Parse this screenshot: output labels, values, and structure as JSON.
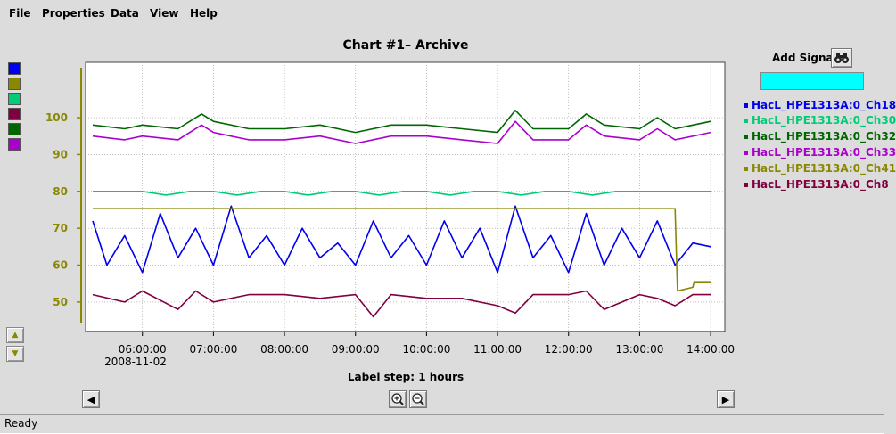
{
  "menu": [
    "File",
    "Properties",
    "Data",
    "View",
    "Help"
  ],
  "chart": {
    "title": "Chart #1– Archive"
  },
  "swatches": [
    "#0000ee",
    "#8a8700",
    "#00cc77",
    "#800040",
    "#006600",
    "#aa00cc"
  ],
  "add_signal": {
    "label": "Add Signal",
    "value": ""
  },
  "legend": [
    {
      "label": "HacL_HPE1313A:0_Ch18",
      "color": "#0000ee"
    },
    {
      "label": "HacL_HPE1313A:0_Ch30",
      "color": "#00cc77"
    },
    {
      "label": "HacL_HPE1313A:0_Ch32",
      "color": "#006600"
    },
    {
      "label": "HacL_HPE1313A:0_Ch33",
      "color": "#aa00cc"
    },
    {
      "label": "HacL_HPE1313A:0_Ch41",
      "color": "#8a8700"
    },
    {
      "label": "HacL_HPE1313A:0_Ch8",
      "color": "#800040"
    }
  ],
  "axis": {
    "label_step": "Label step: 1 hours",
    "date_label": "2008-11-02"
  },
  "status": "Ready",
  "chart_data": {
    "type": "line",
    "title": "Chart #1– Archive",
    "xlabel": "Label step: 1 hours",
    "ylabel": "",
    "x_start": "2008-11-02 05:18",
    "x_end": "2008-11-02 14:00",
    "xlim": [
      "2008-11-02 05:12",
      "2008-11-02 14:12"
    ],
    "ylim": [
      42,
      115
    ],
    "y_ticks": [
      50,
      60,
      70,
      80,
      90,
      100
    ],
    "x_ticks": [
      "06:00:00",
      "07:00:00",
      "08:00:00",
      "09:00:00",
      "10:00:00",
      "11:00:00",
      "12:00:00",
      "13:00:00",
      "14:00:00"
    ],
    "grid": true,
    "legend_position": "right",
    "series": [
      {
        "name": "HacL_HPE1313A:0_Ch18",
        "color": "#0000ee",
        "x": [
          "05:18",
          "05:30",
          "05:45",
          "06:00",
          "06:15",
          "06:30",
          "06:45",
          "07:00",
          "07:15",
          "07:30",
          "07:45",
          "08:00",
          "08:15",
          "08:30",
          "08:45",
          "09:00",
          "09:15",
          "09:30",
          "09:45",
          "10:00",
          "10:15",
          "10:30",
          "10:45",
          "11:00",
          "11:15",
          "11:30",
          "11:45",
          "12:00",
          "12:15",
          "12:30",
          "12:45",
          "13:00",
          "13:15",
          "13:30",
          "13:45",
          "14:00"
        ],
        "y": [
          72,
          60,
          68,
          58,
          74,
          62,
          70,
          60,
          76,
          62,
          68,
          60,
          70,
          62,
          66,
          60,
          72,
          62,
          68,
          60,
          72,
          62,
          70,
          58,
          76,
          62,
          68,
          58,
          74,
          60,
          70,
          62,
          72,
          60,
          66,
          65
        ]
      },
      {
        "name": "HacL_HPE1313A:0_Ch30",
        "color": "#00cc77",
        "x": [
          "05:18",
          "05:45",
          "06:00",
          "06:20",
          "06:40",
          "07:00",
          "07:20",
          "07:40",
          "08:00",
          "08:20",
          "08:40",
          "09:00",
          "09:20",
          "09:40",
          "10:00",
          "10:20",
          "10:40",
          "11:00",
          "11:20",
          "11:40",
          "12:00",
          "12:20",
          "12:40",
          "13:00",
          "13:20",
          "13:40",
          "14:00"
        ],
        "y": [
          80,
          80,
          80,
          79,
          80,
          80,
          79,
          80,
          80,
          79,
          80,
          80,
          79,
          80,
          80,
          79,
          80,
          80,
          79,
          80,
          80,
          79,
          80,
          80,
          80,
          80,
          80
        ]
      },
      {
        "name": "HacL_HPE1313A:0_Ch32",
        "color": "#006600",
        "x": [
          "05:18",
          "05:45",
          "06:00",
          "06:30",
          "06:50",
          "07:00",
          "07:30",
          "08:00",
          "08:30",
          "09:00",
          "09:30",
          "10:00",
          "10:30",
          "11:00",
          "11:15",
          "11:30",
          "12:00",
          "12:15",
          "12:30",
          "13:00",
          "13:15",
          "13:30",
          "14:00"
        ],
        "y": [
          98,
          97,
          98,
          97,
          101,
          99,
          97,
          97,
          98,
          96,
          98,
          98,
          97,
          96,
          102,
          97,
          97,
          101,
          98,
          97,
          100,
          97,
          99
        ]
      },
      {
        "name": "HacL_HPE1313A:0_Ch33",
        "color": "#aa00cc",
        "x": [
          "05:18",
          "05:45",
          "06:00",
          "06:30",
          "06:50",
          "07:00",
          "07:30",
          "08:00",
          "08:30",
          "09:00",
          "09:30",
          "10:00",
          "10:30",
          "11:00",
          "11:15",
          "11:30",
          "12:00",
          "12:15",
          "12:30",
          "13:00",
          "13:15",
          "13:30",
          "14:00"
        ],
        "y": [
          95,
          94,
          95,
          94,
          98,
          96,
          94,
          94,
          95,
          93,
          95,
          95,
          94,
          93,
          99,
          94,
          94,
          98,
          95,
          94,
          97,
          94,
          96
        ]
      },
      {
        "name": "HacL_HPE1313A:0_Ch41",
        "color": "#8a8700",
        "x": [
          "05:18",
          "06:00",
          "07:00",
          "08:00",
          "09:00",
          "10:00",
          "11:00",
          "12:00",
          "13:00",
          "13:30",
          "13:32",
          "13:45",
          "13:46",
          "14:00"
        ],
        "y": [
          75.3,
          75.3,
          75.3,
          75.3,
          75.3,
          75.3,
          75.3,
          75.3,
          75.3,
          75.3,
          53,
          54,
          55.5,
          55.5
        ]
      },
      {
        "name": "HacL_HPE1313A:0_Ch8",
        "color": "#800040",
        "x": [
          "05:18",
          "05:45",
          "06:00",
          "06:30",
          "06:45",
          "07:00",
          "07:30",
          "08:00",
          "08:30",
          "09:00",
          "09:15",
          "09:30",
          "10:00",
          "10:30",
          "11:00",
          "11:15",
          "11:30",
          "12:00",
          "12:15",
          "12:30",
          "13:00",
          "13:15",
          "13:30",
          "13:45",
          "14:00"
        ],
        "y": [
          52,
          50,
          53,
          48,
          53,
          50,
          52,
          52,
          51,
          52,
          46,
          52,
          51,
          51,
          49,
          47,
          52,
          52,
          53,
          48,
          52,
          51,
          49,
          52,
          52
        ]
      }
    ]
  }
}
